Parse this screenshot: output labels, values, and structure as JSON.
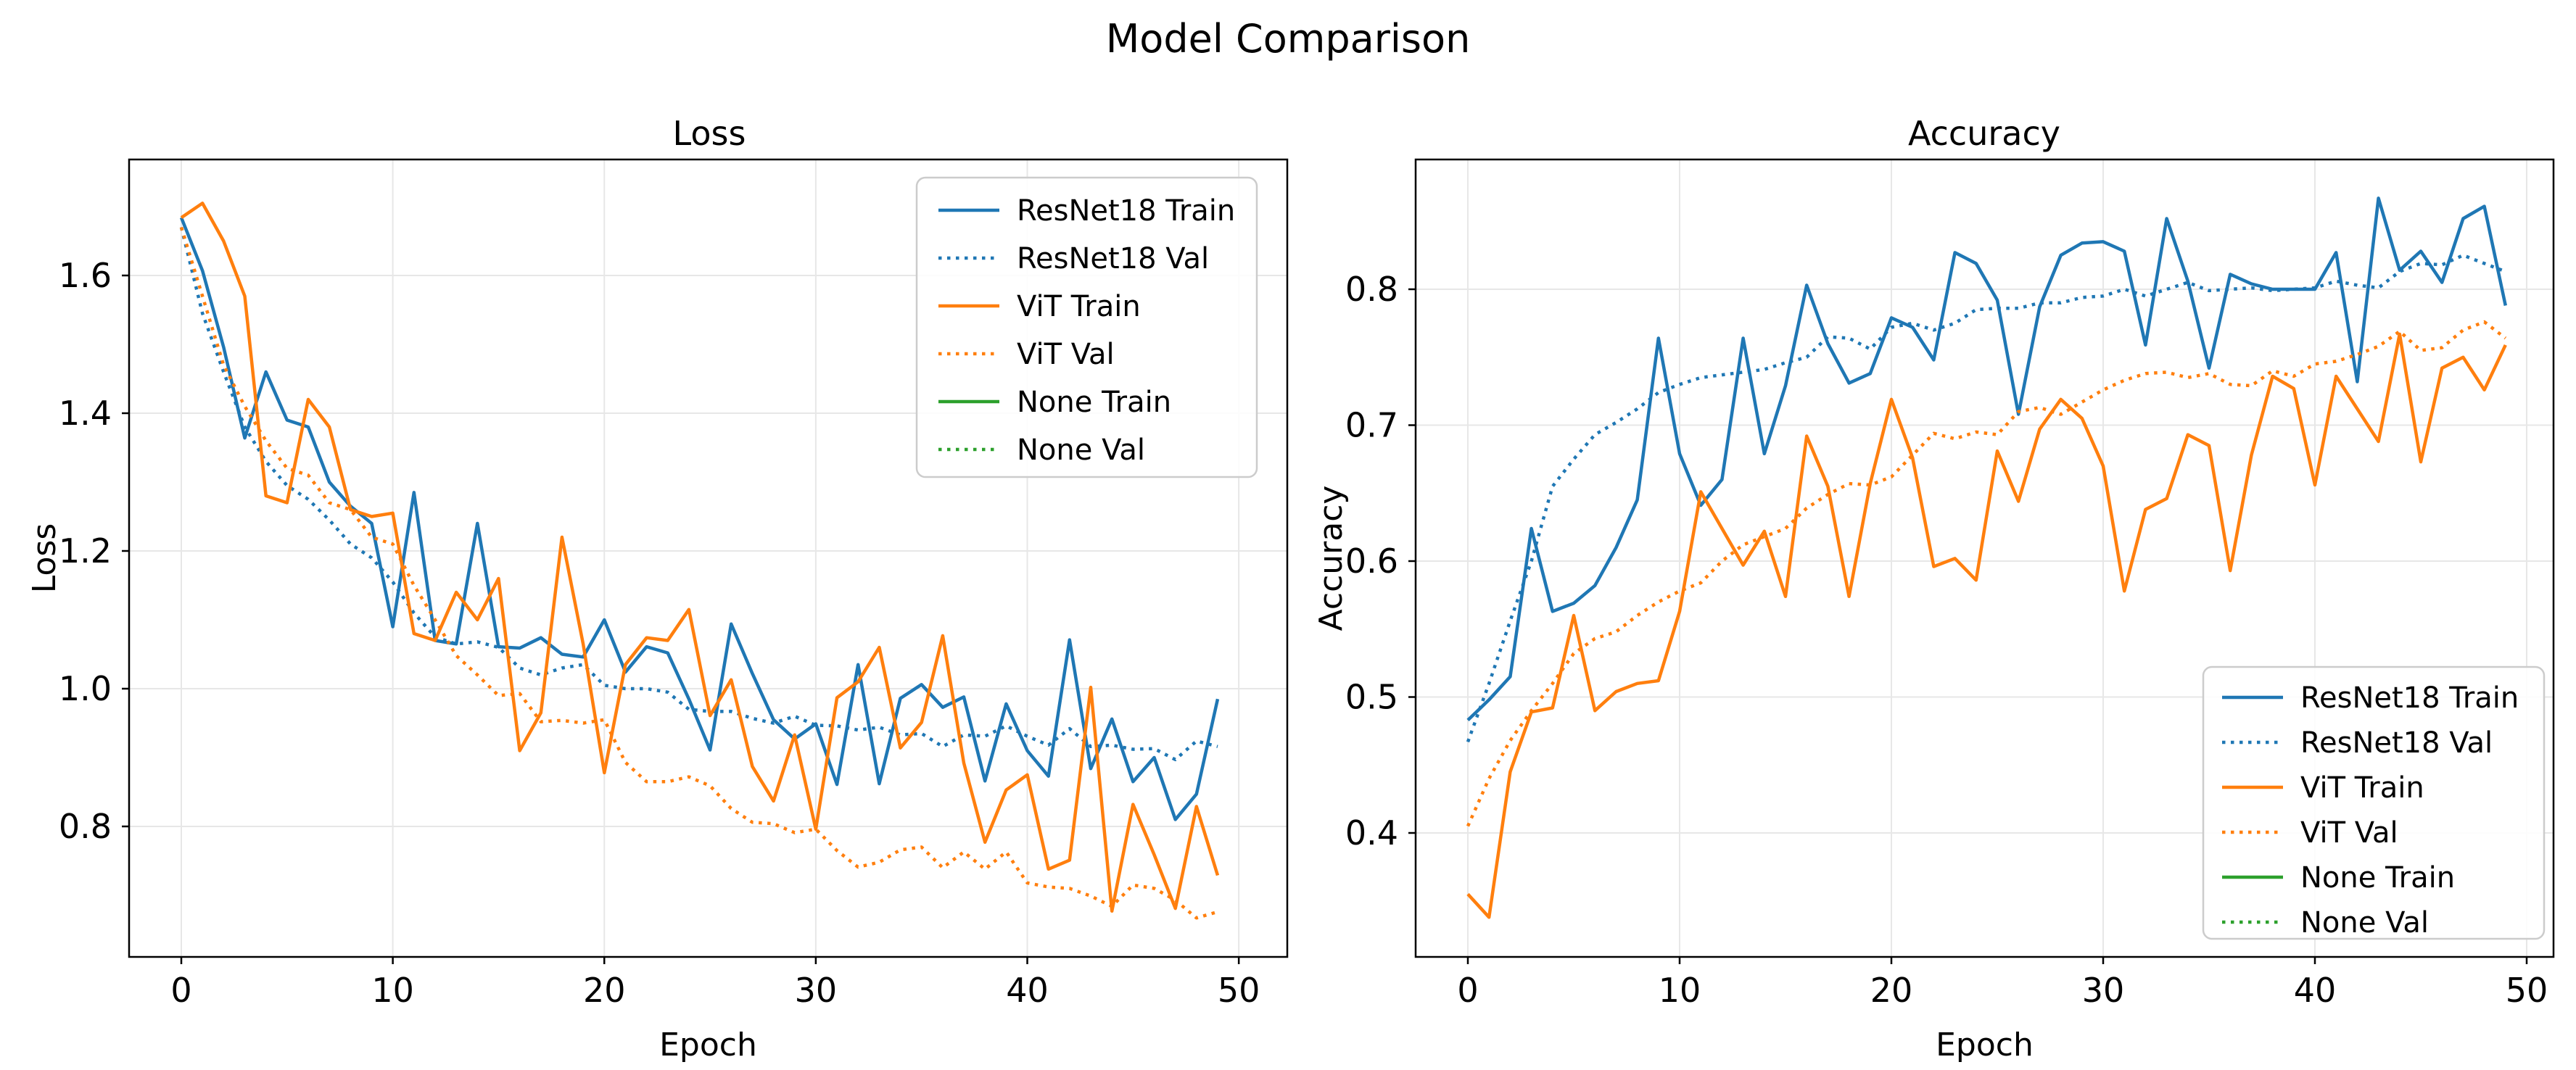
{
  "figure": {
    "suptitle": "Model Comparison"
  },
  "colors": {
    "resnet18": "#1f77b4",
    "vit": "#ff7f0e",
    "none": "#2ca02c",
    "grid": "#e7e7e7",
    "spine": "#000000",
    "legend_border": "#cccccc",
    "text": "#000000"
  },
  "chart_data": [
    {
      "type": "line",
      "title": "Loss",
      "xlabel": "Epoch",
      "ylabel": "Loss",
      "xticks": [
        0,
        10,
        20,
        30,
        40,
        50
      ],
      "yticks": [
        1.6,
        1.4,
        1.2,
        1.0,
        0.8
      ],
      "ylim": [
        0.61,
        1.77
      ],
      "xlim": [
        -2.45,
        51.45
      ],
      "grid": true,
      "legend_position": "upper right",
      "x": [
        0,
        1,
        2,
        3,
        4,
        5,
        6,
        7,
        8,
        9,
        10,
        11,
        12,
        13,
        14,
        15,
        16,
        17,
        18,
        19,
        20,
        21,
        22,
        23,
        24,
        25,
        26,
        27,
        28,
        29,
        30,
        31,
        32,
        33,
        34,
        35,
        36,
        37,
        38,
        39,
        40,
        41,
        42,
        43,
        44,
        45,
        46,
        47,
        48,
        49
      ],
      "series": [
        {
          "name": "ResNet18 Train",
          "color": "#1f77b4",
          "style": "solid",
          "values": [
            1.684,
            1.607,
            1.496,
            1.364,
            1.46,
            1.39,
            1.38,
            1.3,
            1.265,
            1.24,
            1.09,
            1.285,
            1.07,
            1.065,
            1.24,
            1.061,
            1.059,
            1.074,
            1.05,
            1.046,
            1.1,
            1.024,
            1.061,
            1.052,
            0.985,
            0.911,
            1.094,
            1.022,
            0.955,
            0.927,
            0.949,
            0.861,
            1.035,
            0.862,
            0.986,
            1.006,
            0.973,
            0.988,
            0.866,
            0.978,
            0.91,
            0.873,
            1.071,
            0.884,
            0.956,
            0.865,
            0.9,
            0.81,
            0.847,
            0.985
          ]
        },
        {
          "name": "ResNet18 Val",
          "color": "#1f77b4",
          "style": "dotted",
          "values": [
            1.67,
            1.545,
            1.46,
            1.38,
            1.33,
            1.295,
            1.275,
            1.245,
            1.21,
            1.19,
            1.155,
            1.11,
            1.075,
            1.065,
            1.068,
            1.06,
            1.03,
            1.02,
            1.03,
            1.035,
            1.005,
            1.0,
            1.0,
            0.995,
            0.97,
            0.967,
            0.967,
            0.957,
            0.95,
            0.96,
            0.947,
            0.946,
            0.94,
            0.944,
            0.933,
            0.935,
            0.916,
            0.933,
            0.931,
            0.946,
            0.931,
            0.918,
            0.942,
            0.916,
            0.918,
            0.912,
            0.913,
            0.897,
            0.924,
            0.916
          ]
        },
        {
          "name": "ViT Train",
          "color": "#ff7f0e",
          "style": "solid",
          "values": [
            1.684,
            1.705,
            1.65,
            1.57,
            1.28,
            1.27,
            1.42,
            1.38,
            1.26,
            1.25,
            1.255,
            1.08,
            1.07,
            1.14,
            1.1,
            1.16,
            0.91,
            0.965,
            1.22,
            1.065,
            0.878,
            1.035,
            1.074,
            1.07,
            1.115,
            0.961,
            1.013,
            0.887,
            0.837,
            0.933,
            0.796,
            0.987,
            1.01,
            1.06,
            0.914,
            0.951,
            1.077,
            0.892,
            0.777,
            0.853,
            0.875,
            0.738,
            0.751,
            1.002,
            0.677,
            0.832,
            0.759,
            0.681,
            0.829,
            0.729
          ]
        },
        {
          "name": "ViT Val",
          "color": "#ff7f0e",
          "style": "dotted",
          "values": [
            1.67,
            1.57,
            1.47,
            1.41,
            1.36,
            1.32,
            1.31,
            1.27,
            1.26,
            1.22,
            1.21,
            1.15,
            1.1,
            1.048,
            1.02,
            0.99,
            0.993,
            0.952,
            0.954,
            0.95,
            0.955,
            0.893,
            0.865,
            0.865,
            0.872,
            0.859,
            0.826,
            0.806,
            0.804,
            0.791,
            0.796,
            0.765,
            0.741,
            0.748,
            0.766,
            0.77,
            0.74,
            0.763,
            0.738,
            0.763,
            0.718,
            0.712,
            0.71,
            0.699,
            0.684,
            0.715,
            0.71,
            0.693,
            0.667,
            0.676
          ]
        },
        {
          "name": "None Train",
          "color": "#2ca02c",
          "style": "solid",
          "values": []
        },
        {
          "name": "None Val",
          "color": "#2ca02c",
          "style": "dotted",
          "values": []
        }
      ]
    },
    {
      "type": "line",
      "title": "Accuracy",
      "xlabel": "Epoch",
      "ylabel": "Accuracy",
      "xticks": [
        0,
        10,
        20,
        30,
        40,
        50
      ],
      "yticks": [
        0.8,
        0.7,
        0.6,
        0.5,
        0.4
      ],
      "ylim": [
        0.31,
        0.895
      ],
      "xlim": [
        -2.45,
        51.45
      ],
      "grid": true,
      "legend_position": "lower right",
      "x": [
        0,
        1,
        2,
        3,
        4,
        5,
        6,
        7,
        8,
        9,
        10,
        11,
        12,
        13,
        14,
        15,
        16,
        17,
        18,
        19,
        20,
        21,
        22,
        23,
        24,
        25,
        26,
        27,
        28,
        29,
        30,
        31,
        32,
        33,
        34,
        35,
        36,
        37,
        38,
        39,
        40,
        41,
        42,
        43,
        44,
        45,
        46,
        47,
        48,
        49
      ],
      "series": [
        {
          "name": "ResNet18 Train",
          "color": "#1f77b4",
          "style": "solid",
          "values": [
            0.483,
            0.498,
            0.515,
            0.624,
            0.563,
            0.569,
            0.582,
            0.61,
            0.645,
            0.764,
            0.679,
            0.641,
            0.66,
            0.764,
            0.679,
            0.729,
            0.803,
            0.76,
            0.731,
            0.738,
            0.779,
            0.772,
            0.748,
            0.827,
            0.819,
            0.792,
            0.708,
            0.787,
            0.825,
            0.834,
            0.835,
            0.828,
            0.759,
            0.852,
            0.806,
            0.742,
            0.811,
            0.804,
            0.8,
            0.8,
            0.8,
            0.827,
            0.732,
            0.867,
            0.814,
            0.828,
            0.805,
            0.852,
            0.861,
            0.788
          ]
        },
        {
          "name": "ResNet18 Val",
          "color": "#1f77b4",
          "style": "dotted",
          "values": [
            0.467,
            0.51,
            0.556,
            0.6,
            0.655,
            0.675,
            0.693,
            0.702,
            0.712,
            0.724,
            0.73,
            0.735,
            0.737,
            0.739,
            0.741,
            0.746,
            0.75,
            0.765,
            0.764,
            0.756,
            0.772,
            0.775,
            0.77,
            0.775,
            0.785,
            0.786,
            0.786,
            0.79,
            0.79,
            0.794,
            0.795,
            0.8,
            0.795,
            0.8,
            0.805,
            0.799,
            0.8,
            0.801,
            0.799,
            0.8,
            0.801,
            0.806,
            0.803,
            0.801,
            0.813,
            0.819,
            0.818,
            0.825,
            0.819,
            0.813
          ]
        },
        {
          "name": "ViT Train",
          "color": "#ff7f0e",
          "style": "solid",
          "values": [
            0.355,
            0.338,
            0.445,
            0.489,
            0.492,
            0.56,
            0.49,
            0.504,
            0.51,
            0.512,
            0.563,
            0.651,
            0.624,
            0.597,
            0.622,
            0.574,
            0.692,
            0.655,
            0.574,
            0.657,
            0.719,
            0.676,
            0.596,
            0.602,
            0.586,
            0.681,
            0.644,
            0.697,
            0.719,
            0.705,
            0.67,
            0.578,
            0.638,
            0.646,
            0.693,
            0.685,
            0.593,
            0.678,
            0.736,
            0.727,
            0.656,
            0.736,
            0.712,
            0.688,
            0.767,
            0.673,
            0.742,
            0.75,
            0.726,
            0.759
          ]
        },
        {
          "name": "ViT Val",
          "color": "#ff7f0e",
          "style": "dotted",
          "values": [
            0.405,
            0.44,
            0.468,
            0.49,
            0.51,
            0.532,
            0.543,
            0.548,
            0.56,
            0.57,
            0.578,
            0.584,
            0.6,
            0.612,
            0.618,
            0.624,
            0.639,
            0.649,
            0.657,
            0.656,
            0.662,
            0.678,
            0.694,
            0.69,
            0.695,
            0.693,
            0.71,
            0.713,
            0.708,
            0.717,
            0.726,
            0.733,
            0.738,
            0.739,
            0.735,
            0.738,
            0.73,
            0.729,
            0.74,
            0.736,
            0.745,
            0.747,
            0.752,
            0.758,
            0.769,
            0.755,
            0.757,
            0.77,
            0.776,
            0.764
          ]
        },
        {
          "name": "None Train",
          "color": "#2ca02c",
          "style": "solid",
          "values": []
        },
        {
          "name": "None Val",
          "color": "#2ca02c",
          "style": "dotted",
          "values": []
        }
      ]
    }
  ]
}
